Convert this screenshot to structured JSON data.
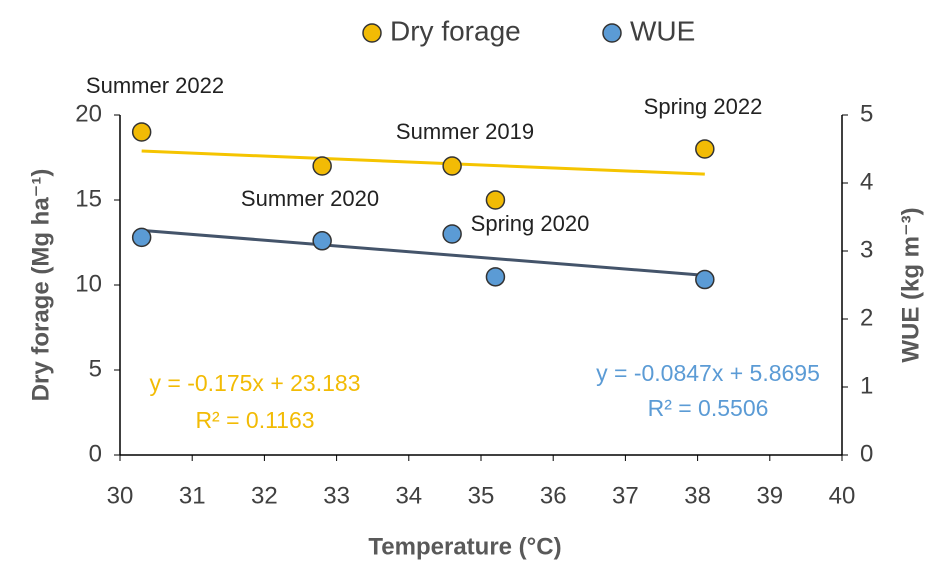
{
  "chart_data": {
    "type": "scatter",
    "x_label": "Temperature (°C)",
    "y_label": "Dry forage (Mg ha⁻¹)",
    "y2_label": "WUE (kg m⁻³)",
    "x": [
      30.3,
      32.8,
      34.6,
      35.2,
      38.1
    ],
    "point_labels": [
      "Summer 2022",
      "Summer 2020",
      "Summer 2019",
      "Spring 2020",
      "Spring 2022"
    ],
    "series": [
      {
        "name": "Dry forage",
        "color": "#f2bb05",
        "values": [
          19,
          17,
          17,
          15,
          18
        ],
        "trendline": {
          "x": [
            30.3,
            38.1
          ],
          "values": [
            17.88,
            16.52
          ],
          "color": "#f5c400"
        },
        "equation": "y = -0.175x + 23.183",
        "r2": "R² = 0.1163"
      },
      {
        "name": "WUE",
        "color": "#5b9bd5",
        "axis": "y2",
        "values": [
          3.2,
          3.15,
          3.25,
          2.62,
          2.58
        ],
        "trendline": {
          "x": [
            30.3,
            38.1
          ],
          "values": [
            3.303,
            2.642
          ],
          "color": "#44546a"
        },
        "equation": "y = -0.0847x + 5.8695",
        "r2": "R² = 0.5506"
      }
    ],
    "xlim": [
      30,
      40
    ],
    "xticks": [
      30,
      31,
      32,
      33,
      34,
      35,
      36,
      37,
      38,
      39,
      40
    ],
    "ylim": [
      0,
      20
    ],
    "yticks": [
      0,
      5,
      10,
      15,
      20
    ],
    "y2lim": [
      0,
      5
    ],
    "y2ticks": [
      0,
      1,
      2,
      3,
      4,
      5
    ],
    "legend": "top"
  }
}
